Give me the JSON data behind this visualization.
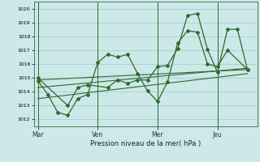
{
  "background_color": "#cce8e8",
  "grid_color": "#aacece",
  "line_color": "#2d6a2d",
  "xlabel": "Pression niveau de la mer( hPa )",
  "ylim": [
    1011.5,
    1020.5
  ],
  "yticks": [
    1012,
    1013,
    1014,
    1015,
    1016,
    1017,
    1018,
    1019,
    1020
  ],
  "xtick_labels": [
    "Mar",
    "Ven",
    "Mer",
    "Jeu"
  ],
  "xtick_positions": [
    0,
    3,
    6,
    9
  ],
  "vline_positions": [
    0,
    3,
    6,
    9
  ],
  "xlim": [
    -0.2,
    11.0
  ],
  "series1_x": [
    0,
    0.5,
    1.0,
    1.5,
    2.0,
    2.5,
    3.0,
    3.5,
    4.0,
    4.5,
    5.0,
    5.5,
    6.0,
    6.5,
    7.0,
    7.5,
    8.0,
    8.5,
    9.0,
    9.5,
    10.5
  ],
  "series1_y": [
    1014.8,
    1013.8,
    1012.5,
    1012.3,
    1013.5,
    1013.8,
    1016.1,
    1016.7,
    1016.5,
    1016.7,
    1015.3,
    1014.05,
    1013.3,
    1014.7,
    1017.5,
    1018.4,
    1018.3,
    1016.0,
    1015.8,
    1017.0,
    1015.6
  ],
  "series2_x": [
    0,
    1.5,
    2.0,
    2.5,
    3.5,
    4.0,
    4.5,
    5.0,
    5.5,
    6.0,
    6.5,
    7.0,
    7.5,
    8.0,
    8.5,
    9.0,
    9.5,
    10.0,
    10.5
  ],
  "series2_y": [
    1015.0,
    1013.0,
    1014.3,
    1014.5,
    1014.3,
    1014.85,
    1014.6,
    1014.85,
    1014.85,
    1015.8,
    1015.9,
    1017.1,
    1019.5,
    1019.65,
    1017.05,
    1015.4,
    1018.5,
    1018.5,
    1015.6
  ],
  "trend1_x": [
    0,
    10.5
  ],
  "trend1_y": [
    1014.85,
    1015.6
  ],
  "trend2_x": [
    0,
    10.5
  ],
  "trend2_y": [
    1013.5,
    1015.3
  ],
  "trend3_x": [
    0,
    10.5
  ],
  "trend3_y": [
    1014.3,
    1015.7
  ]
}
